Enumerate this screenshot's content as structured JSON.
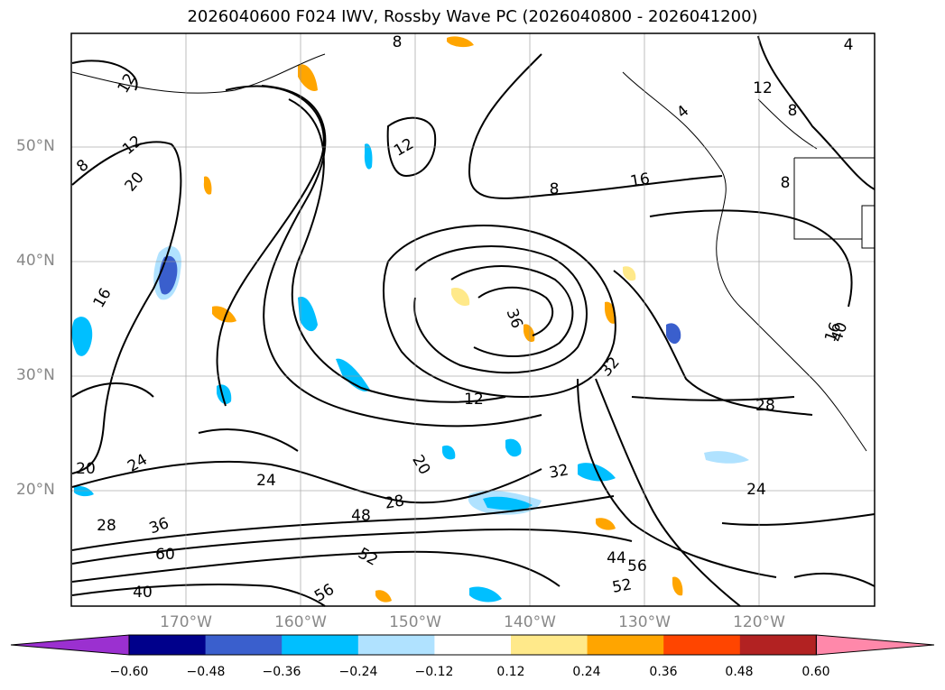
{
  "title": "2026040600 F024 IWV, Rossby Wave PC (2026040800 - 2026041200)",
  "lat_labels": [
    "50°N",
    "40°N",
    "30°N",
    "20°N"
  ],
  "lon_labels": [
    "170°W",
    "160°W",
    "150°W",
    "140°W",
    "130°W",
    "120°W"
  ],
  "colorbar": {
    "ticks": [
      "−0.60",
      "−0.48",
      "−0.36",
      "−0.24",
      "−0.12",
      "0.12",
      "0.24",
      "0.36",
      "0.48",
      "0.60"
    ],
    "colors": [
      "#9b30d0",
      "#00008b",
      "#3a5fcd",
      "#00bfff",
      "#b0e2ff",
      "#ffffff",
      "#ffe98a",
      "#ffa500",
      "#ff4500",
      "#b22222",
      "#ff88aa"
    ]
  },
  "contour_labels": [
    "8",
    "4",
    "12",
    "12",
    "8",
    "12",
    "4",
    "8",
    "20",
    "16",
    "8",
    "12",
    "16",
    "40",
    "36",
    "32",
    "28",
    "24",
    "20",
    "24",
    "28",
    "36",
    "40",
    "48",
    "60",
    "56",
    "52",
    "44",
    "56",
    "52",
    "28",
    "16",
    "8",
    "24",
    "20",
    "32",
    "12"
  ]
}
